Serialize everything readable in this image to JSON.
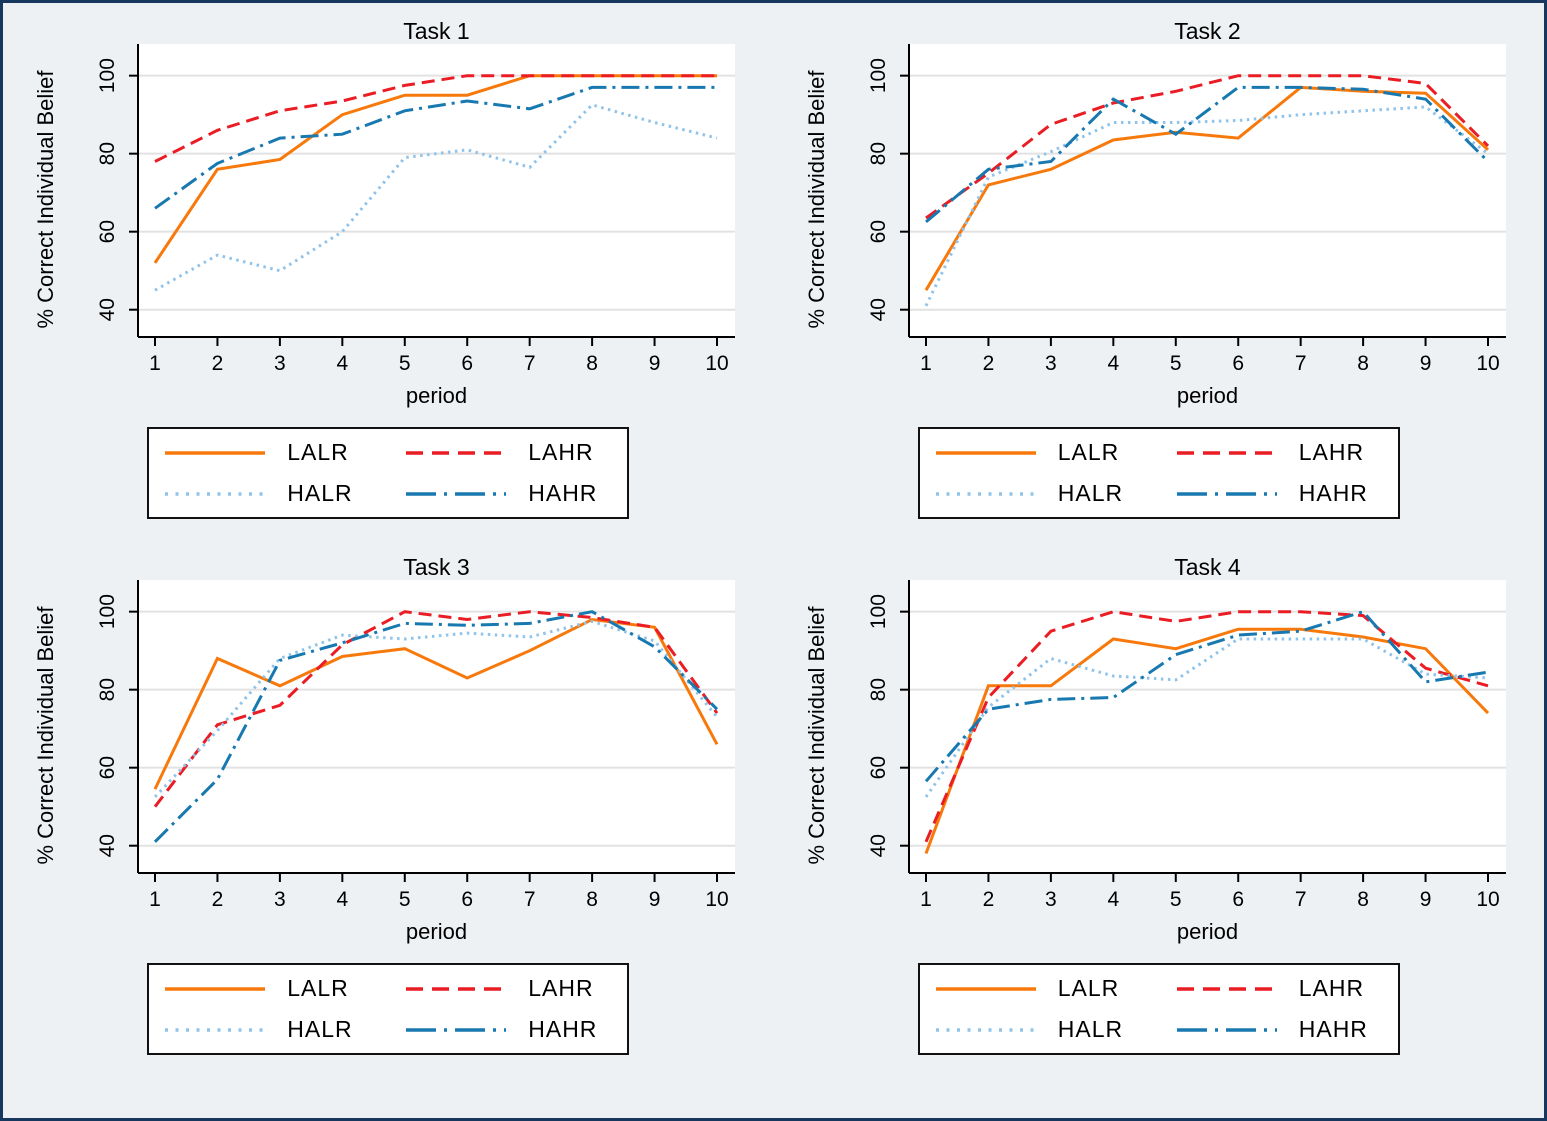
{
  "figure": {
    "background": "#EEF1F3",
    "border_color": "#17375E",
    "plot_background": "#FFFFFF",
    "grid_color": "#E2E2E2",
    "axis_color": "#000000",
    "text_color": "#000000",
    "ylabel": "% Correct Individual Belief",
    "xlabel": "period",
    "y_ticks": [
      40,
      60,
      80,
      100
    ],
    "x_ticks": [
      1,
      2,
      3,
      4,
      5,
      6,
      7,
      8,
      9,
      10
    ],
    "ylim": [
      33,
      103.5
    ]
  },
  "series_styles": {
    "LALR": {
      "color": "#F8790B",
      "dash": "",
      "legend_dash": ""
    },
    "LAHR": {
      "color": "#EA1C24",
      "dash": "13 7",
      "legend_dash": "17 9"
    },
    "HALR": {
      "color": "#8FC3E9",
      "dash": "2.5 4.5",
      "legend_dash": "3 7.5"
    },
    "HAHR": {
      "color": "#1878B0",
      "dash": "18 6 3 6",
      "legend_dash": "30 8 3 8"
    }
  },
  "legend": {
    "labels": [
      "LALR",
      "LAHR",
      "HALR",
      "HAHR"
    ]
  },
  "chart_data": [
    {
      "type": "line",
      "title": "Task 1",
      "xlabel": "period",
      "ylabel": "% Correct Individual Belief",
      "x": [
        1,
        2,
        3,
        4,
        5,
        6,
        7,
        8,
        9,
        10
      ],
      "ylim": [
        33,
        103.5
      ],
      "series": [
        {
          "name": "LALR",
          "values": [
            52,
            76,
            78.5,
            90,
            95,
            95,
            100,
            100,
            100,
            100
          ]
        },
        {
          "name": "LAHR",
          "values": [
            78,
            86,
            91,
            93.5,
            97.5,
            100,
            100,
            100,
            100,
            100
          ]
        },
        {
          "name": "HALR",
          "values": [
            45,
            54,
            50,
            60,
            79,
            81,
            76.5,
            92.5,
            88,
            84
          ]
        },
        {
          "name": "HAHR",
          "values": [
            66,
            77.5,
            84,
            85,
            91,
            93.5,
            91.5,
            97,
            97,
            97
          ]
        }
      ]
    },
    {
      "type": "line",
      "title": "Task 2",
      "xlabel": "period",
      "ylabel": "% Correct Individual Belief",
      "x": [
        1,
        2,
        3,
        4,
        5,
        6,
        7,
        8,
        9,
        10
      ],
      "ylim": [
        33,
        103.5
      ],
      "series": [
        {
          "name": "LALR",
          "values": [
            45,
            72,
            76,
            83.5,
            85.5,
            84,
            97,
            96,
            95.5,
            81
          ]
        },
        {
          "name": "LAHR",
          "values": [
            63.5,
            75,
            87.5,
            93,
            96,
            100,
            100,
            100,
            98,
            82
          ]
        },
        {
          "name": "HALR",
          "values": [
            41,
            74,
            80.5,
            88,
            88,
            88.5,
            90,
            91,
            92,
            80
          ]
        },
        {
          "name": "HAHR",
          "values": [
            62.5,
            76,
            78,
            94,
            85,
            97,
            97,
            96.5,
            94,
            78
          ]
        }
      ]
    },
    {
      "type": "line",
      "title": "Task 3",
      "xlabel": "period",
      "ylabel": "% Correct Individual Belief",
      "x": [
        1,
        2,
        3,
        4,
        5,
        6,
        7,
        8,
        9,
        10
      ],
      "ylim": [
        33,
        103.5
      ],
      "series": [
        {
          "name": "LALR",
          "values": [
            54.5,
            88,
            81,
            88.5,
            90.5,
            83,
            90,
            98,
            96,
            66
          ]
        },
        {
          "name": "LAHR",
          "values": [
            50,
            71,
            76,
            91.5,
            100,
            98,
            100,
            98.5,
            96,
            74
          ]
        },
        {
          "name": "HALR",
          "values": [
            52.5,
            69.5,
            88,
            94,
            93,
            94.5,
            93.5,
            97.5,
            92.5,
            73
          ]
        },
        {
          "name": "HAHR",
          "values": [
            41,
            57,
            87.5,
            92,
            97,
            96.5,
            97,
            100,
            91,
            75
          ]
        }
      ]
    },
    {
      "type": "line",
      "title": "Task 4",
      "xlabel": "period",
      "ylabel": "% Correct Individual Belief",
      "x": [
        1,
        2,
        3,
        4,
        5,
        6,
        7,
        8,
        9,
        10
      ],
      "ylim": [
        33,
        103.5
      ],
      "series": [
        {
          "name": "LALR",
          "values": [
            38,
            81,
            81,
            93,
            90.5,
            95.5,
            95.5,
            93.5,
            90.5,
            74
          ]
        },
        {
          "name": "LAHR",
          "values": [
            41,
            78,
            95,
            100,
            97.5,
            100,
            100,
            99,
            85.5,
            81
          ]
        },
        {
          "name": "HALR",
          "values": [
            52.5,
            75.5,
            88,
            83.5,
            82.5,
            93,
            93,
            93,
            84,
            83
          ]
        },
        {
          "name": "HAHR",
          "values": [
            56.5,
            75,
            77.5,
            78,
            89,
            94,
            95,
            100,
            82,
            84.5
          ]
        }
      ]
    }
  ]
}
